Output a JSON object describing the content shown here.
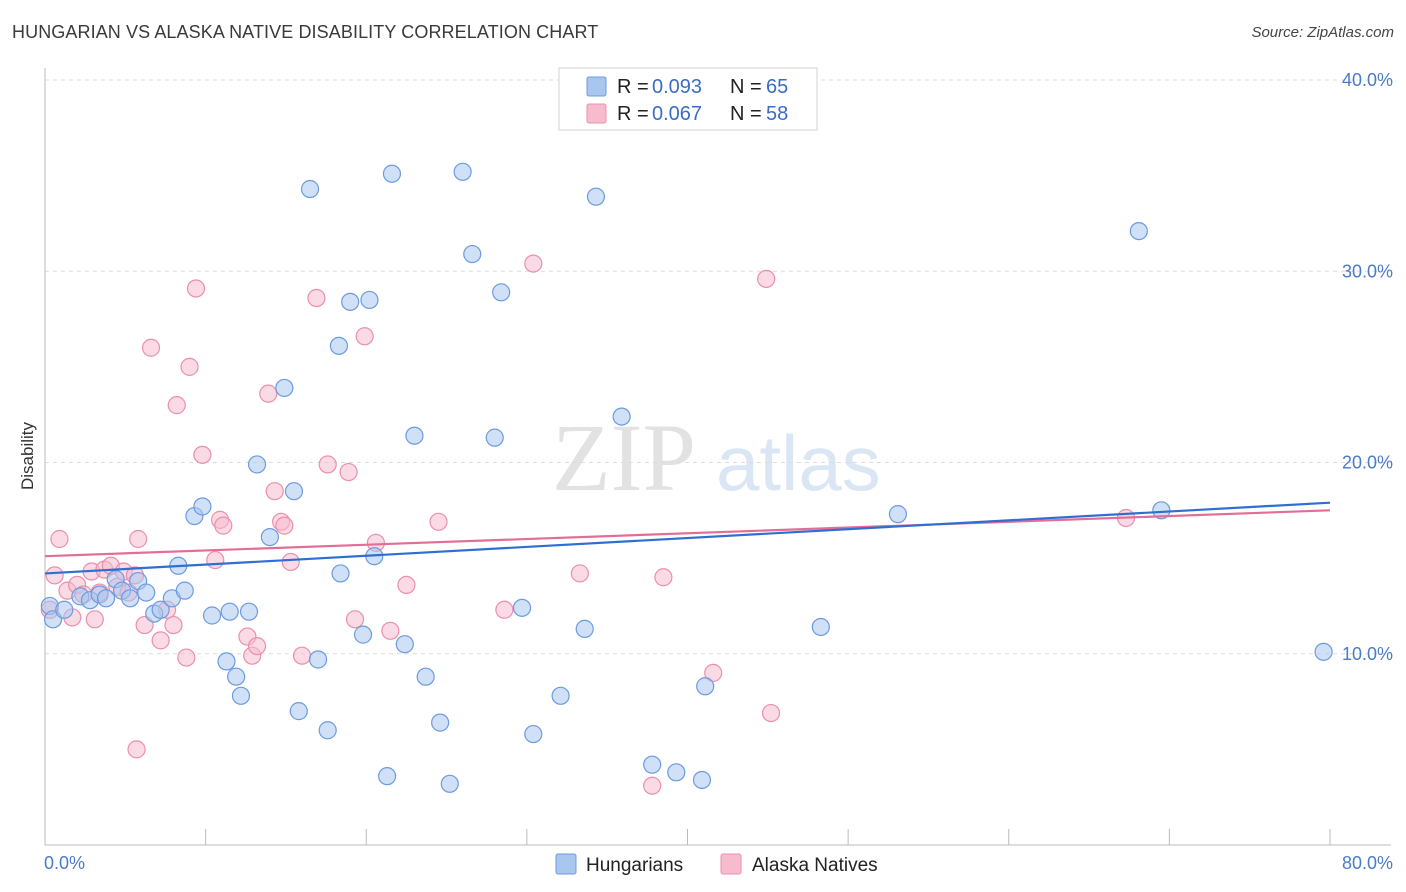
{
  "title": "HUNGARIAN VS ALASKA NATIVE DISABILITY CORRELATION CHART",
  "source": "Source: ZipAtlas.com",
  "watermark": {
    "zip": "ZIP",
    "atlas": "atlas"
  },
  "colors": {
    "hungarian_fill": "#a9c6ef",
    "hungarian_stroke": "#6c9be0",
    "hungarian_line": "#2f6fd1",
    "alaska_fill": "#f6bccd",
    "alaska_stroke": "#ec8fab",
    "alaska_line": "#e36d96",
    "tick_text": "#4a7bc8"
  },
  "legend_top": {
    "rows": [
      {
        "r_label": "R =",
        "r_value": "0.093",
        "n_label": "N =",
        "n_value": "65"
      },
      {
        "r_label": "R =",
        "r_value": "0.067",
        "n_label": "N =",
        "n_value": "58"
      }
    ]
  },
  "legend_bottom": [
    "Hungarians",
    "Alaska Natives"
  ],
  "chart_data": {
    "type": "scatter",
    "title": "HUNGARIAN VS ALASKA NATIVE DISABILITY CORRELATION CHART",
    "xlabel": "",
    "ylabel": "Disability",
    "xlim": [
      0,
      80
    ],
    "ylim": [
      0,
      40
    ],
    "x_tick_labels": [
      "0.0%",
      "80.0%"
    ],
    "y_ticks": [
      10,
      20,
      30,
      40
    ],
    "y_tick_labels": [
      "10.0%",
      "20.0%",
      "30.0%",
      "40.0%"
    ],
    "grid": "horizontal dashed",
    "legend_placement": "top-center and bottom-center",
    "series": [
      {
        "name": "Hungarians",
        "r": 0.093,
        "n": 65,
        "trend": {
          "x": [
            0,
            80
          ],
          "y": [
            14.2,
            17.9
          ]
        },
        "points": [
          [
            0.3,
            12.5
          ],
          [
            0.5,
            11.8
          ],
          [
            1.2,
            12.3
          ],
          [
            2.2,
            13.0
          ],
          [
            2.8,
            12.8
          ],
          [
            3.4,
            13.1
          ],
          [
            3.8,
            12.9
          ],
          [
            4.4,
            13.9
          ],
          [
            4.8,
            13.3
          ],
          [
            5.3,
            12.9
          ],
          [
            5.8,
            13.8
          ],
          [
            6.3,
            13.2
          ],
          [
            6.8,
            12.1
          ],
          [
            7.2,
            12.3
          ],
          [
            7.9,
            12.9
          ],
          [
            8.3,
            14.6
          ],
          [
            8.7,
            13.3
          ],
          [
            9.3,
            17.2
          ],
          [
            9.8,
            17.7
          ],
          [
            10.4,
            12.0
          ],
          [
            11.3,
            9.6
          ],
          [
            11.5,
            12.2
          ],
          [
            11.9,
            8.8
          ],
          [
            12.2,
            7.8
          ],
          [
            12.7,
            12.2
          ],
          [
            13.2,
            19.9
          ],
          [
            14.0,
            16.1
          ],
          [
            14.9,
            23.9
          ],
          [
            15.5,
            18.5
          ],
          [
            15.8,
            7.0
          ],
          [
            16.5,
            34.3
          ],
          [
            17.0,
            9.7
          ],
          [
            17.6,
            6.0
          ],
          [
            18.3,
            26.1
          ],
          [
            18.4,
            14.2
          ],
          [
            19.0,
            28.4
          ],
          [
            19.8,
            11.0
          ],
          [
            20.2,
            28.5
          ],
          [
            20.5,
            15.1
          ],
          [
            21.3,
            3.6
          ],
          [
            21.6,
            35.1
          ],
          [
            22.4,
            10.5
          ],
          [
            23.0,
            21.4
          ],
          [
            23.7,
            8.8
          ],
          [
            24.6,
            6.4
          ],
          [
            25.2,
            3.2
          ],
          [
            26.0,
            35.2
          ],
          [
            26.6,
            30.9
          ],
          [
            28.0,
            21.3
          ],
          [
            28.4,
            28.9
          ],
          [
            29.7,
            12.4
          ],
          [
            30.4,
            5.8
          ],
          [
            32.1,
            7.8
          ],
          [
            33.6,
            11.3
          ],
          [
            34.3,
            33.9
          ],
          [
            35.9,
            22.4
          ],
          [
            37.8,
            4.2
          ],
          [
            39.3,
            3.8
          ],
          [
            40.9,
            3.4
          ],
          [
            41.1,
            8.3
          ],
          [
            48.3,
            11.4
          ],
          [
            53.1,
            17.3
          ],
          [
            68.1,
            32.1
          ],
          [
            69.5,
            17.5
          ],
          [
            79.6,
            10.1
          ]
        ]
      },
      {
        "name": "Alaska Natives",
        "r": 0.067,
        "n": 58,
        "trend": {
          "x": [
            0,
            80
          ],
          "y": [
            15.1,
            17.5
          ]
        },
        "points": [
          [
            0.3,
            12.3
          ],
          [
            0.6,
            14.1
          ],
          [
            0.9,
            16.0
          ],
          [
            1.4,
            13.3
          ],
          [
            1.7,
            11.9
          ],
          [
            2.0,
            13.6
          ],
          [
            2.4,
            13.1
          ],
          [
            2.9,
            14.3
          ],
          [
            3.1,
            11.8
          ],
          [
            3.4,
            13.2
          ],
          [
            3.7,
            14.4
          ],
          [
            4.1,
            14.6
          ],
          [
            4.5,
            13.5
          ],
          [
            4.9,
            14.3
          ],
          [
            5.2,
            13.2
          ],
          [
            5.6,
            14.1
          ],
          [
            5.7,
            5.0
          ],
          [
            5.8,
            16.0
          ],
          [
            6.2,
            11.5
          ],
          [
            6.6,
            26.0
          ],
          [
            7.2,
            10.7
          ],
          [
            7.6,
            12.3
          ],
          [
            8.0,
            11.5
          ],
          [
            8.2,
            23.0
          ],
          [
            8.8,
            9.8
          ],
          [
            9.0,
            25.0
          ],
          [
            9.4,
            29.1
          ],
          [
            9.8,
            20.4
          ],
          [
            10.6,
            14.9
          ],
          [
            10.9,
            17.0
          ],
          [
            11.1,
            16.7
          ],
          [
            12.6,
            10.9
          ],
          [
            12.9,
            9.9
          ],
          [
            13.2,
            10.4
          ],
          [
            13.9,
            23.6
          ],
          [
            14.3,
            18.5
          ],
          [
            14.7,
            16.9
          ],
          [
            14.9,
            16.7
          ],
          [
            15.3,
            14.8
          ],
          [
            16.0,
            9.9
          ],
          [
            16.9,
            28.6
          ],
          [
            17.6,
            19.9
          ],
          [
            18.9,
            19.5
          ],
          [
            19.3,
            11.8
          ],
          [
            19.9,
            26.6
          ],
          [
            20.6,
            15.8
          ],
          [
            21.5,
            11.2
          ],
          [
            22.5,
            13.6
          ],
          [
            24.5,
            16.9
          ],
          [
            28.6,
            12.3
          ],
          [
            30.4,
            30.4
          ],
          [
            33.3,
            14.2
          ],
          [
            37.8,
            3.1
          ],
          [
            38.5,
            14.0
          ],
          [
            41.6,
            9.0
          ],
          [
            44.9,
            29.6
          ],
          [
            45.2,
            6.9
          ],
          [
            67.3,
            17.1
          ]
        ]
      }
    ]
  }
}
